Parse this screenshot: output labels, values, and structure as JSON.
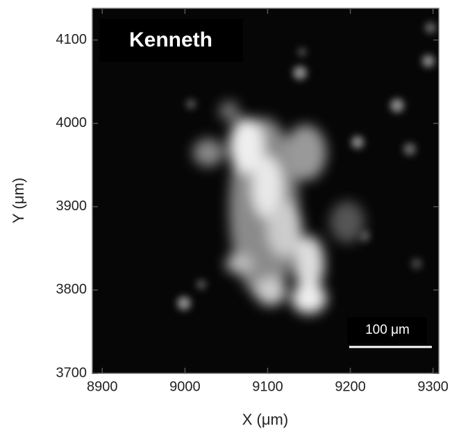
{
  "chart_data": {
    "type": "image",
    "panel_label": "Kenneth",
    "x_label": "X (μm)",
    "y_label": "Y (μm)",
    "xlim": [
      8888,
      9307
    ],
    "ylim": [
      3700,
      4138
    ],
    "xticks": [
      8900,
      9000,
      9100,
      9200,
      9300
    ],
    "yticks": [
      3700,
      3800,
      3900,
      4000,
      4100
    ],
    "scalebar": {
      "label": "100 μm",
      "length": 100
    }
  }
}
